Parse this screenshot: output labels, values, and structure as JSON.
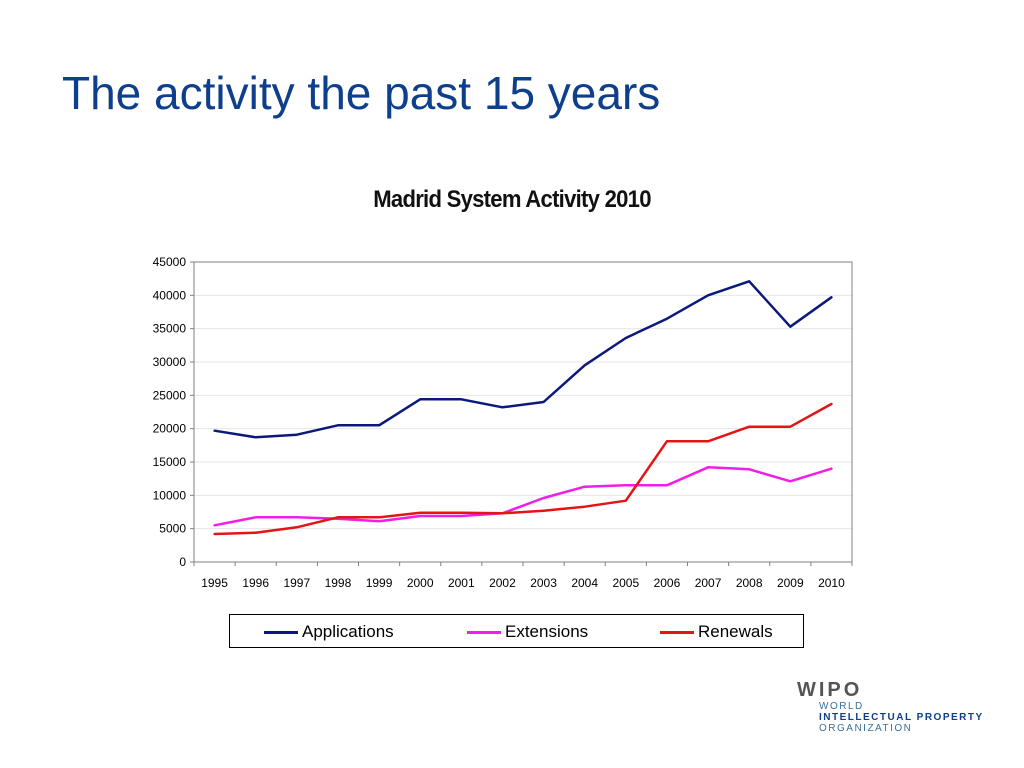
{
  "slide": {
    "title": "The activity the past 15 years"
  },
  "logo": {
    "word": "WIPO",
    "lines": [
      "WORLD",
      "INTELLECTUAL PROPERTY",
      "ORGANIZATION"
    ]
  },
  "colors": {
    "title": "#0e3f8c",
    "applications": "#0b1a7a",
    "extensions": "#f01ee6",
    "renewals": "#e31515"
  },
  "chart_data": {
    "type": "line",
    "title": "Madrid System Activity 2010",
    "xlabel": "",
    "ylabel": "",
    "x": [
      "1995",
      "1996",
      "1997",
      "1998",
      "1999",
      "2000",
      "2001",
      "2002",
      "2003",
      "2004",
      "2005",
      "2006",
      "2007",
      "2008",
      "2009",
      "2010"
    ],
    "ylim": [
      0,
      45000
    ],
    "yticks": [
      0,
      5000,
      10000,
      15000,
      20000,
      25000,
      30000,
      35000,
      40000,
      45000
    ],
    "grid": true,
    "legend": "bottom",
    "series": [
      {
        "name": "Applications",
        "color": "#0b1a7a",
        "values": [
          19700,
          18700,
          19100,
          20500,
          20500,
          24400,
          24400,
          23200,
          24000,
          29500,
          33600,
          36500,
          40000,
          42100,
          35300,
          39700
        ]
      },
      {
        "name": "Extensions",
        "color": "#f01ee6",
        "values": [
          5500,
          6700,
          6700,
          6500,
          6100,
          6900,
          6900,
          7300,
          9600,
          11300,
          11500,
          11500,
          14200,
          13900,
          12100,
          14000
        ]
      },
      {
        "name": "Renewals",
        "color": "#e31515",
        "values": [
          4200,
          4400,
          5200,
          6700,
          6700,
          7400,
          7400,
          7300,
          7700,
          8300,
          9200,
          18100,
          18100,
          20300,
          20300,
          23700
        ]
      }
    ]
  }
}
